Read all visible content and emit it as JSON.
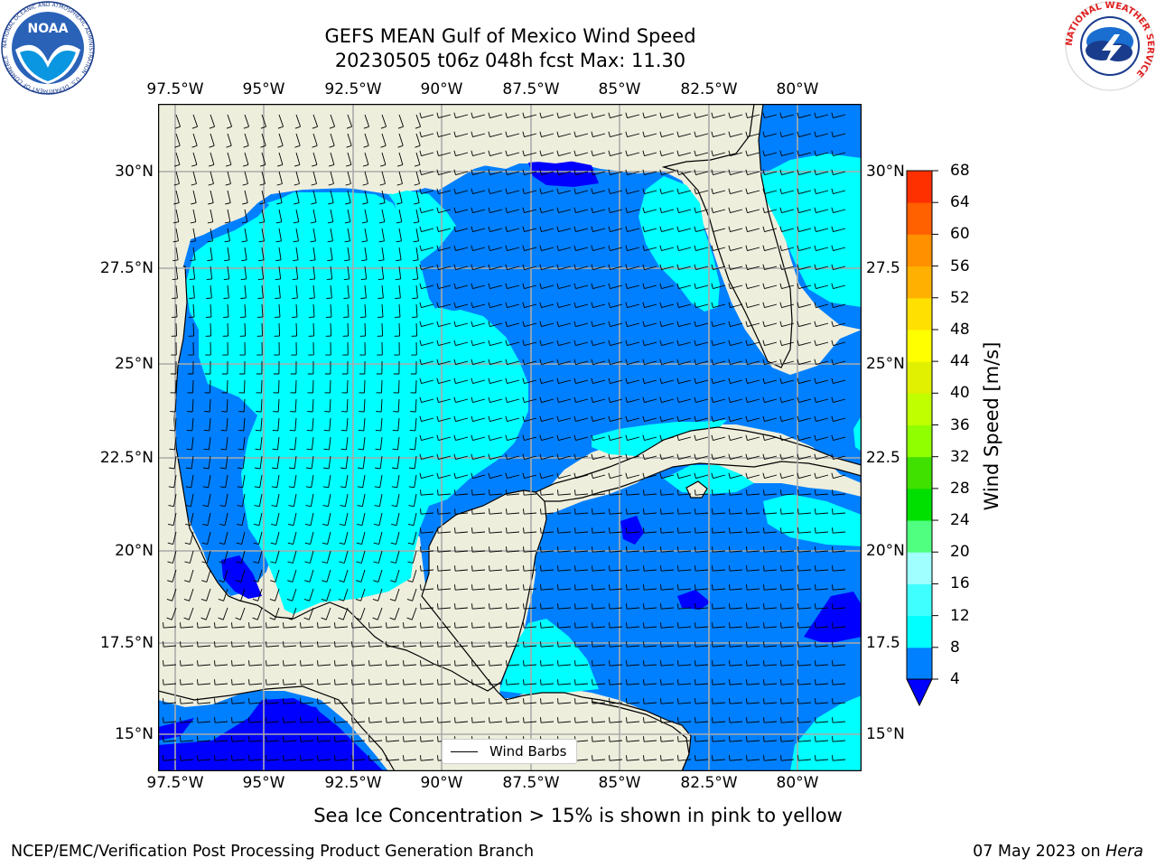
{
  "title_line1": "GEFS MEAN Gulf of Mexico Wind Speed",
  "title_line2": "20230505 t06z 048h fcst   Max: 11.30",
  "lon_labels": [
    "97.5°W",
    "95°W",
    "92.5°W",
    "90°W",
    "87.5°W",
    "85°W",
    "82.5°W",
    "80°W"
  ],
  "lat_labels_left": [
    "30°N",
    "27.5°N",
    "25°N",
    "22.5°N",
    "20°N",
    "17.5°N",
    "15°N"
  ],
  "lat_labels_right": [
    "30°N",
    "27.5",
    "25°N",
    "22.5",
    "20°N",
    "17.5",
    "15°N"
  ],
  "legend_label": "Wind Barbs",
  "colorbar": {
    "title": "Wind Speed [m/s]",
    "ticks": [
      "4",
      "8",
      "12",
      "16",
      "20",
      "24",
      "28",
      "32",
      "36",
      "40",
      "44",
      "48",
      "52",
      "56",
      "60",
      "64",
      "68"
    ],
    "colors": [
      "#0080ff",
      "#00ffff",
      "#40ffff",
      "#a0ffff",
      "#50ff80",
      "#00e000",
      "#40e000",
      "#90ff00",
      "#c0ff00",
      "#e0f000",
      "#ffff00",
      "#ffe000",
      "#ffb000",
      "#ff9000",
      "#ff6000",
      "#ff3000"
    ],
    "under_color": "#0000ff"
  },
  "map_colors": {
    "land": "#eeeedd",
    "band_4_8": "#0080ff",
    "band_8_12": "#00ffff",
    "below_4": "#0000ff",
    "grid": "#aaaaaa"
  },
  "subcaption": "Sea Ice Concentration > 15% is shown in pink to yellow",
  "footer_left": "NCEP/EMC/Verification Post Processing Product Generation Branch",
  "footer_date": "07 May 2023 on",
  "footer_host": "Hera",
  "logos": {
    "noaa_text": "NOAA",
    "noaa_ring": "NATIONAL OCEANIC AND ATMOSPHERIC ADMINISTRATION · U.S. DEPARTMENT OF COMMERCE",
    "nws_ring": "NATIONAL WEATHER SERVICE"
  }
}
